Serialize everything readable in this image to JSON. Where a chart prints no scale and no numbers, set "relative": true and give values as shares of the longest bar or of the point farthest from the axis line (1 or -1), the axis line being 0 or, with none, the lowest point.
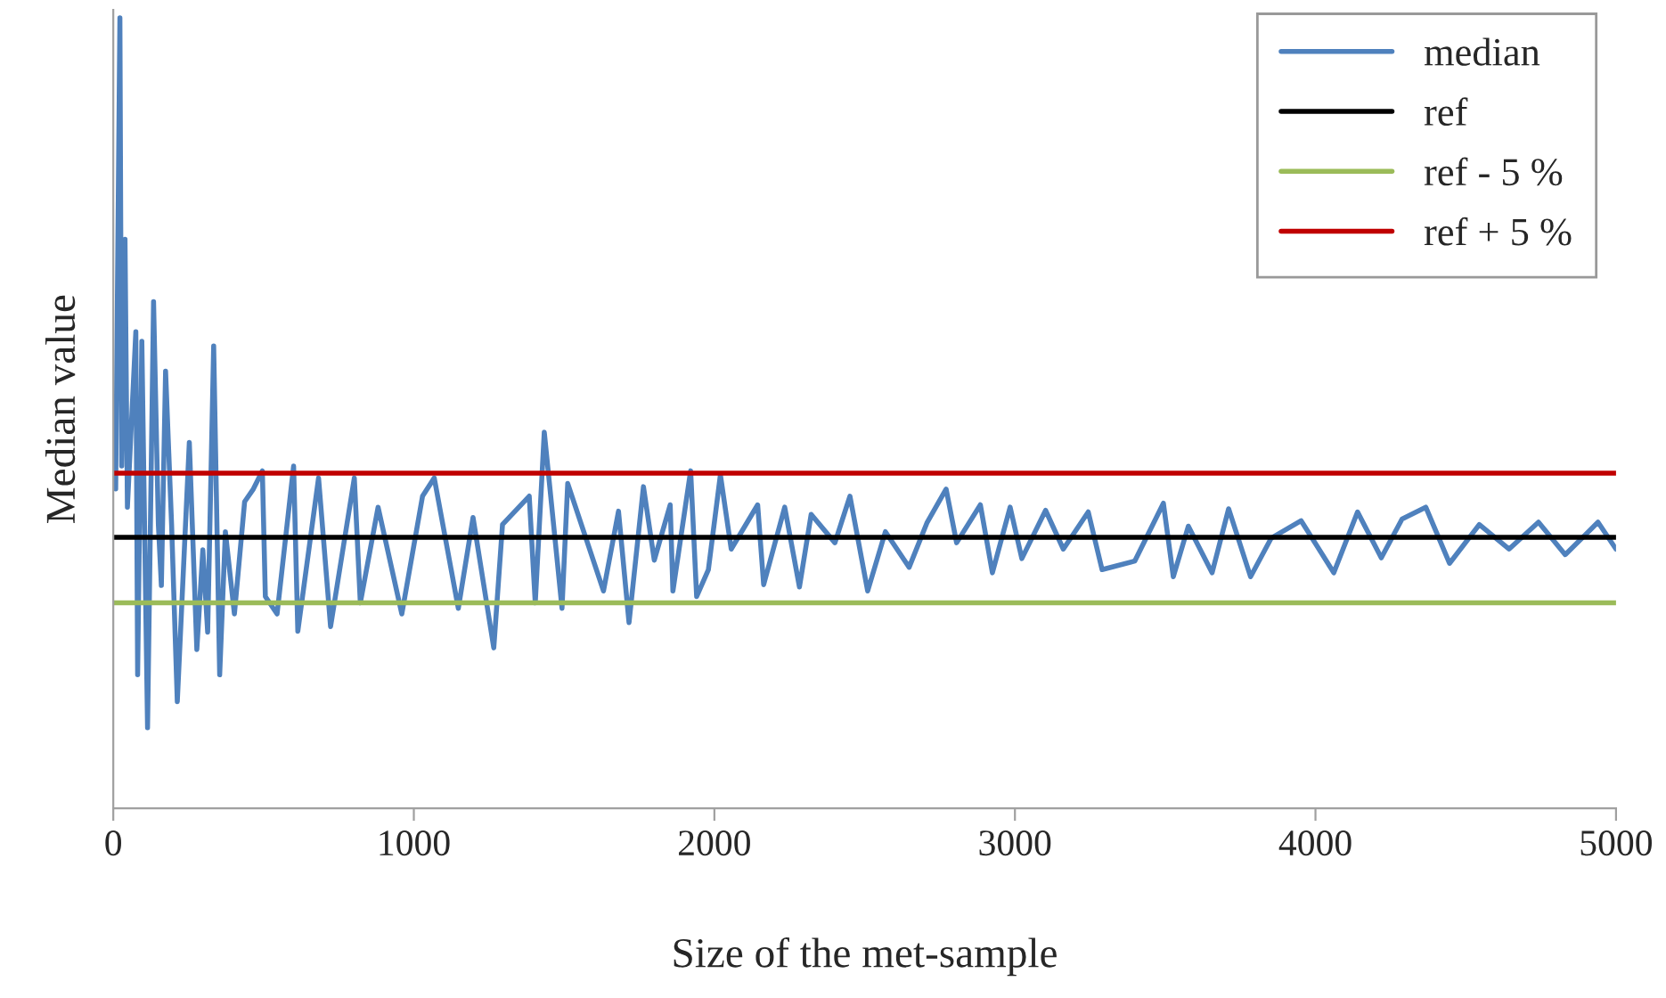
{
  "chart_data": {
    "type": "line",
    "relative": true,
    "xlabel": "Size of the met-sample",
    "ylabel": "Median value",
    "xlim": [
      0,
      5000
    ],
    "xticks": [
      0,
      1000,
      2000,
      3000,
      4000,
      5000
    ],
    "grid": false,
    "legend": "top right",
    "marker": "none",
    "line_style": "solid",
    "series": [
      {
        "name": "median",
        "color": "#4f81bd",
        "x": [
          8,
          22,
          28,
          39,
          47,
          75,
          81,
          95,
          114,
          134,
          150,
          160,
          174,
          194,
          213,
          253,
          278,
          298,
          314,
          334,
          354,
          373,
          403,
          437,
          466,
          496,
          506,
          545,
          600,
          614,
          683,
          723,
          802,
          822,
          881,
          960,
          1029,
          1068,
          1148,
          1197,
          1266,
          1295,
          1384,
          1404,
          1434,
          1493,
          1512,
          1631,
          1681,
          1716,
          1764,
          1800,
          1853,
          1862,
          1921,
          1941,
          1980,
          2020,
          2056,
          2144,
          2164,
          2234,
          2283,
          2322,
          2401,
          2451,
          2510,
          2569,
          2648,
          2707,
          2771,
          2806,
          2885,
          2925,
          2984,
          3023,
          3102,
          3161,
          3244,
          3290,
          3399,
          3494,
          3527,
          3577,
          3656,
          3711,
          3784,
          3853,
          3952,
          4061,
          4140,
          4219,
          4288,
          4367,
          4446,
          4545,
          4644,
          4742,
          4831,
          4940,
          5000
        ],
        "values": [
          0.404,
          1.0,
          0.433,
          0.72,
          0.381,
          0.603,
          0.169,
          0.591,
          0.102,
          0.641,
          0.359,
          0.282,
          0.553,
          0.359,
          0.135,
          0.463,
          0.201,
          0.327,
          0.223,
          0.585,
          0.169,
          0.35,
          0.246,
          0.388,
          0.404,
          0.427,
          0.268,
          0.246,
          0.433,
          0.224,
          0.418,
          0.23,
          0.418,
          0.26,
          0.381,
          0.246,
          0.395,
          0.418,
          0.253,
          0.368,
          0.203,
          0.359,
          0.395,
          0.26,
          0.476,
          0.253,
          0.411,
          0.275,
          0.376,
          0.235,
          0.407,
          0.314,
          0.384,
          0.275,
          0.427,
          0.268,
          0.302,
          0.422,
          0.328,
          0.384,
          0.283,
          0.381,
          0.28,
          0.372,
          0.336,
          0.395,
          0.275,
          0.35,
          0.305,
          0.361,
          0.404,
          0.336,
          0.384,
          0.298,
          0.381,
          0.316,
          0.377,
          0.328,
          0.375,
          0.302,
          0.313,
          0.386,
          0.293,
          0.357,
          0.298,
          0.379,
          0.293,
          0.342,
          0.364,
          0.298,
          0.375,
          0.317,
          0.366,
          0.381,
          0.31,
          0.359,
          0.328,
          0.362,
          0.321,
          0.362,
          0.328
        ]
      },
      {
        "name": "ref",
        "color": "#000000",
        "x": [
          0,
          5000
        ],
        "values": [
          0.343,
          0.343
        ]
      },
      {
        "name": "ref - 5 %",
        "color": "#9bbb59",
        "x": [
          0,
          5000
        ],
        "values": [
          0.26,
          0.26
        ]
      },
      {
        "name": "ref + 5 %",
        "color": "#c00000",
        "x": [
          0,
          5000
        ],
        "values": [
          0.424,
          0.424
        ]
      }
    ]
  }
}
